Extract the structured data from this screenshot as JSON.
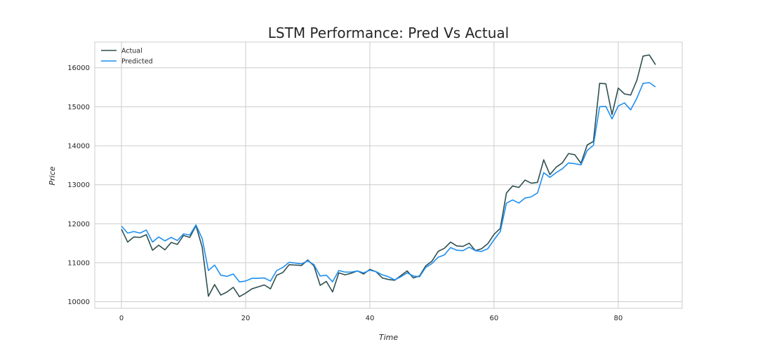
{
  "chart_data": {
    "type": "line",
    "title": "LSTM Performance: Pred Vs Actual",
    "xlabel": "Time",
    "ylabel": "Price",
    "xlim": [
      -4.3,
      90.3
    ],
    "ylim": [
      9830,
      16660
    ],
    "xticks": [
      0,
      20,
      40,
      60,
      80
    ],
    "yticks": [
      10000,
      11000,
      12000,
      13000,
      14000,
      15000,
      16000
    ],
    "grid": true,
    "legend_position": "top-left",
    "series": [
      {
        "name": "Actual",
        "color": "#2f4f4f",
        "values": [
          11860,
          11530,
          11660,
          11650,
          11720,
          11320,
          11450,
          11330,
          11520,
          11470,
          11700,
          11650,
          11950,
          11400,
          10140,
          10440,
          10170,
          10250,
          10370,
          10130,
          10220,
          10330,
          10380,
          10430,
          10330,
          10680,
          10750,
          10950,
          10940,
          10930,
          11070,
          10920,
          10420,
          10520,
          10250,
          10740,
          10690,
          10730,
          10790,
          10710,
          10830,
          10770,
          10610,
          10570,
          10550,
          10670,
          10790,
          10610,
          10660,
          10920,
          11040,
          11290,
          11370,
          11530,
          11430,
          11420,
          11500,
          11310,
          11360,
          11490,
          11730,
          11880,
          12790,
          12970,
          12930,
          13120,
          13040,
          13060,
          13640,
          13260,
          13450,
          13560,
          13800,
          13770,
          13550,
          14020,
          14110,
          15600,
          15590,
          14800,
          15480,
          15330,
          15300,
          15680,
          16300,
          16330,
          16080
        ]
      },
      {
        "name": "Predicted",
        "color": "#1e8ff0",
        "values": [
          11940,
          11760,
          11800,
          11760,
          11840,
          11530,
          11660,
          11560,
          11650,
          11570,
          11740,
          11710,
          11970,
          11620,
          10800,
          10940,
          10680,
          10650,
          10710,
          10510,
          10530,
          10600,
          10600,
          10610,
          10530,
          10800,
          10880,
          11010,
          10990,
          10970,
          11050,
          10950,
          10660,
          10680,
          10510,
          10800,
          10760,
          10760,
          10790,
          10740,
          10810,
          10770,
          10690,
          10640,
          10560,
          10640,
          10740,
          10660,
          10640,
          10880,
          10980,
          11140,
          11200,
          11390,
          11320,
          11310,
          11400,
          11310,
          11290,
          11360,
          11590,
          11800,
          12530,
          12610,
          12530,
          12660,
          12690,
          12790,
          13310,
          13190,
          13310,
          13410,
          13560,
          13540,
          13510,
          13880,
          14010,
          15000,
          15010,
          14690,
          15020,
          15100,
          14920,
          15220,
          15600,
          15620,
          15510
        ]
      }
    ]
  }
}
